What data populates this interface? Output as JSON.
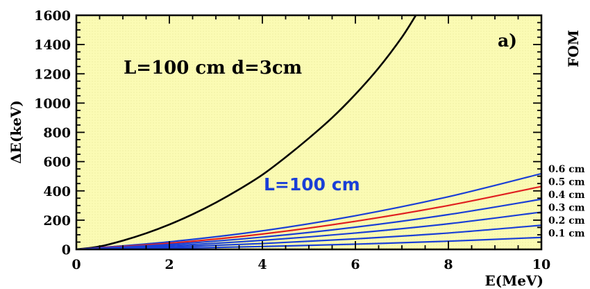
{
  "chart_data": {
    "type": "line",
    "panel_label": "a)",
    "xlabel": "E(MeV)",
    "ylabel": "ΔE(keV)",
    "right_axis_label": "FOM",
    "xlim": [
      0,
      10
    ],
    "ylim": [
      0,
      1600
    ],
    "xticks": [
      "0",
      "2",
      "4",
      "6",
      "8",
      "10"
    ],
    "yticks": [
      "0",
      "200",
      "400",
      "600",
      "800",
      "1000",
      "1200",
      "1400",
      "1600"
    ],
    "annotations": {
      "black_curve": "L=100 cm d=3cm",
      "blue_group": "L=100 cm"
    },
    "colors": {
      "plot_background": "#fbfbb4",
      "black": "#000000",
      "blue": "#1a3fd6",
      "red": "#e02020"
    },
    "series": [
      {
        "label": "",
        "color": "#000000",
        "x": [
          0,
          0.5,
          1,
          1.5,
          2,
          2.5,
          3,
          3.5,
          4,
          4.5,
          5,
          5.5,
          6,
          6.5,
          7,
          7.3
        ],
        "y": [
          0,
          20,
          60,
          110,
          170,
          240,
          320,
          410,
          510,
          630,
          760,
          900,
          1060,
          1240,
          1450,
          1600
        ]
      },
      {
        "label": "0.6 cm",
        "color": "#1a3fd6",
        "x": [
          0,
          2,
          4,
          6,
          8,
          10
        ],
        "y": [
          0,
          52,
          127,
          230,
          360,
          518
        ]
      },
      {
        "label": "0.5 cm",
        "color": "#e02020",
        "x": [
          0,
          2,
          4,
          6,
          8,
          10
        ],
        "y": [
          0,
          42,
          105,
          192,
          300,
          430
        ]
      },
      {
        "label": "0.4 cm",
        "color": "#1a3fd6",
        "x": [
          0,
          2,
          4,
          6,
          8,
          10
        ],
        "y": [
          0,
          34,
          84,
          152,
          238,
          343
        ]
      },
      {
        "label": "0.3 cm",
        "color": "#1a3fd6",
        "x": [
          0,
          2,
          4,
          6,
          8,
          10
        ],
        "y": [
          0,
          25,
          62,
          112,
          175,
          255
        ]
      },
      {
        "label": "0.2 cm",
        "color": "#1a3fd6",
        "x": [
          0,
          2,
          4,
          6,
          8,
          10
        ],
        "y": [
          0,
          16,
          40,
          72,
          112,
          165
        ]
      },
      {
        "label": "0.1 cm",
        "color": "#1a3fd6",
        "x": [
          0,
          2,
          4,
          6,
          8,
          10
        ],
        "y": [
          0,
          8,
          20,
          36,
          56,
          82
        ]
      }
    ]
  }
}
